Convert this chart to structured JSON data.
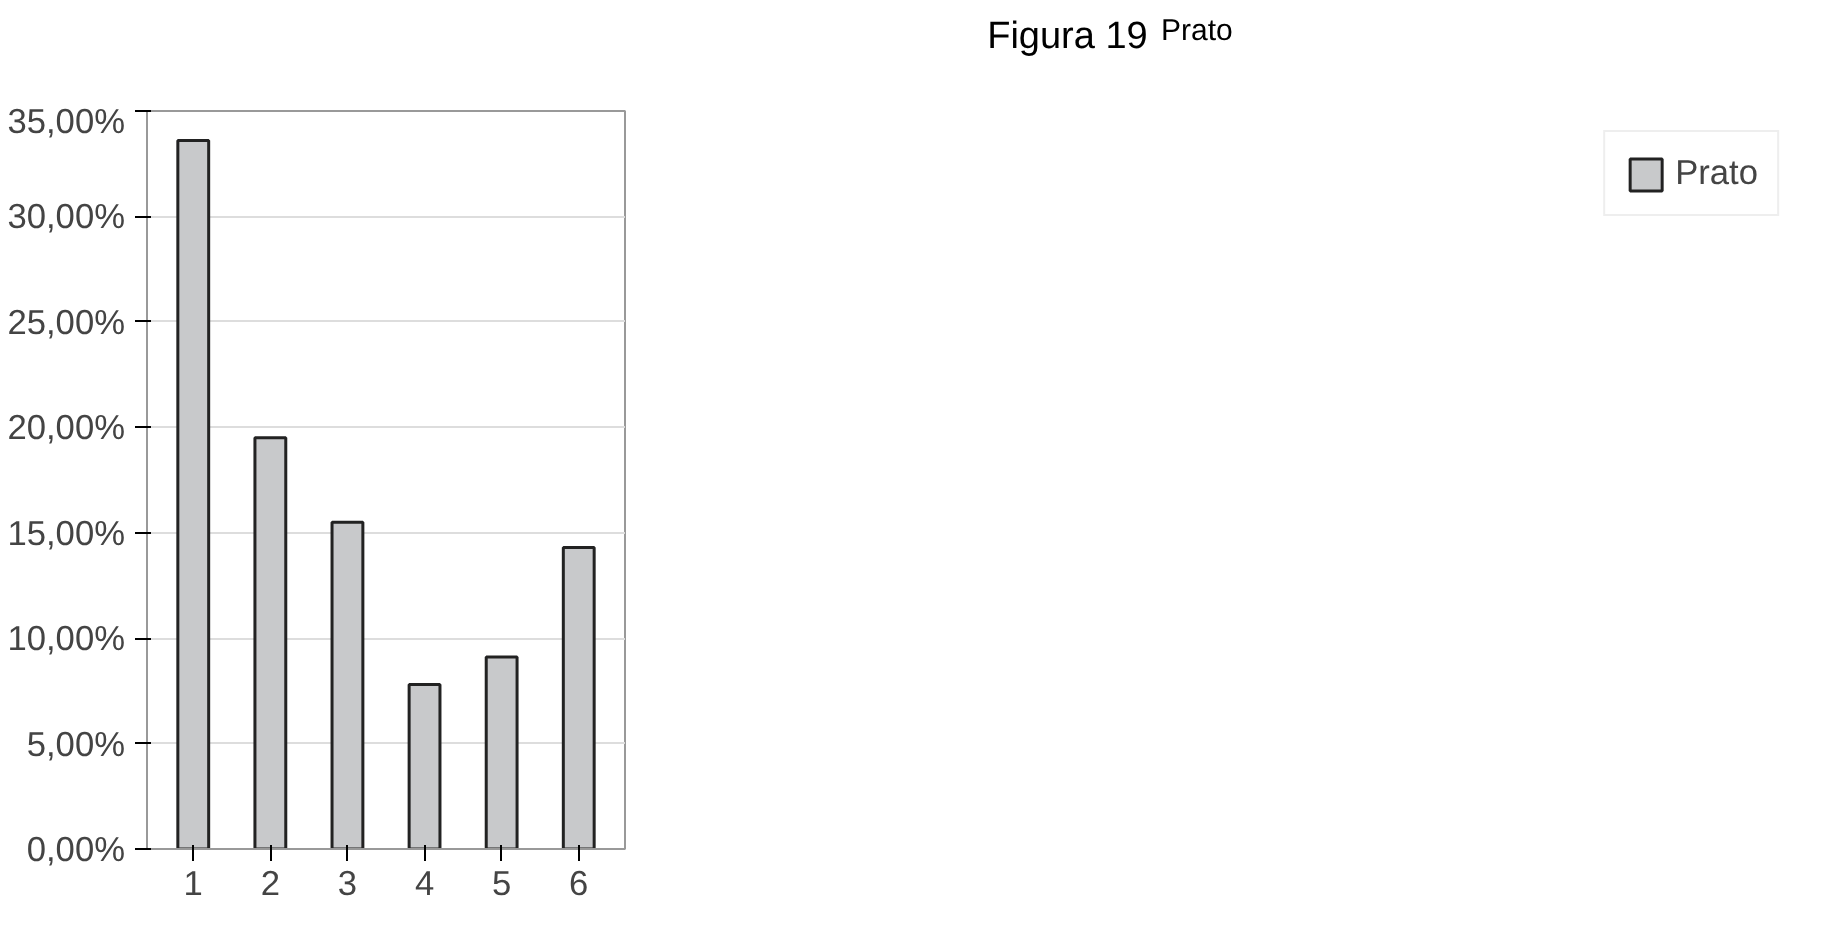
{
  "chart_data": {
    "type": "bar",
    "title": "Figura 19",
    "subtitle": "Prato",
    "categories": [
      "1",
      "2",
      "3",
      "4",
      "5",
      "6"
    ],
    "series": [
      {
        "name": "Prato",
        "color": "#c8c9cb",
        "values": [
          33.6,
          19.5,
          15.5,
          7.8,
          9.1,
          14.3
        ]
      }
    ],
    "ylim": [
      0,
      35
    ],
    "yticks": [
      {
        "value": 0,
        "label": "0,00%"
      },
      {
        "value": 5,
        "label": "5,00%"
      },
      {
        "value": 10,
        "label": "10,00%"
      },
      {
        "value": 15,
        "label": "15,00%"
      },
      {
        "value": 20,
        "label": "20,00%"
      },
      {
        "value": 25,
        "label": "25,00%"
      },
      {
        "value": 30,
        "label": "30,00%"
      },
      {
        "value": 35,
        "label": "35,00%"
      }
    ],
    "grid": "y",
    "legend": "right"
  }
}
